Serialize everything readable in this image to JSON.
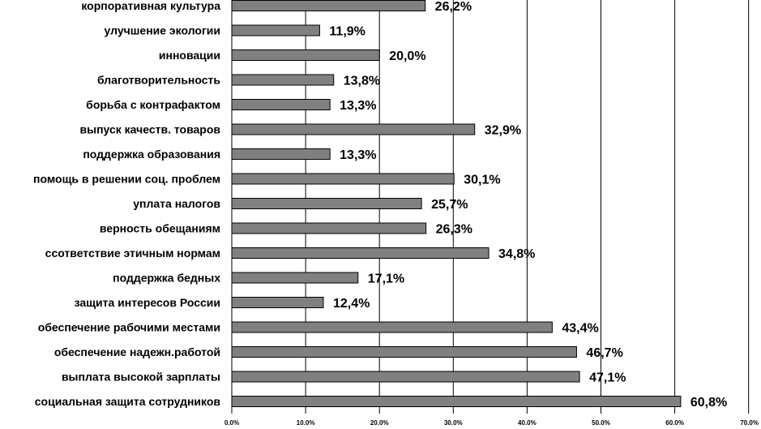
{
  "chart_data": {
    "type": "bar",
    "orientation": "horizontal",
    "categories": [
      "корпоративная культура",
      "улучшение экологии",
      "инновации",
      "благотворительность",
      "борьба с контрафактом",
      "выпуск качеств. товаров",
      "поддержка образования",
      "помощь в решении соц. проблем",
      "уплата налогов",
      "верность обещаниям",
      "ссответствие этичным нормам",
      "поддержка бедных",
      "защита интересов России",
      "обеспечение рабочими местами",
      "обеспечение надежн.работой",
      "выплата высокой зарплаты",
      "социальная защита сотрудников"
    ],
    "values": [
      26.2,
      11.9,
      20.0,
      13.8,
      13.3,
      32.9,
      13.3,
      30.1,
      25.7,
      26.3,
      34.8,
      17.1,
      12.4,
      43.4,
      46.7,
      47.1,
      60.8
    ],
    "value_labels": [
      "26,2%",
      "11,9%",
      "20,0%",
      "13,8%",
      "13,3%",
      "32,9%",
      "13,3%",
      "30,1%",
      "25,7%",
      "26,3%",
      "34,8%",
      "17,1%",
      "12,4%",
      "43,4%",
      "46,7%",
      "47,1%",
      "60,8%"
    ],
    "xlim": [
      0,
      70
    ],
    "x_ticks": [
      "0.0%",
      "10.0%",
      "20.0%",
      "30.0%",
      "40.0%",
      "50.0%",
      "60.0%",
      "70.0%"
    ],
    "grid": "vertical",
    "bar_color": "#808080",
    "bar_edge_color": "#000000",
    "title": "",
    "xlabel": "",
    "ylabel": ""
  }
}
